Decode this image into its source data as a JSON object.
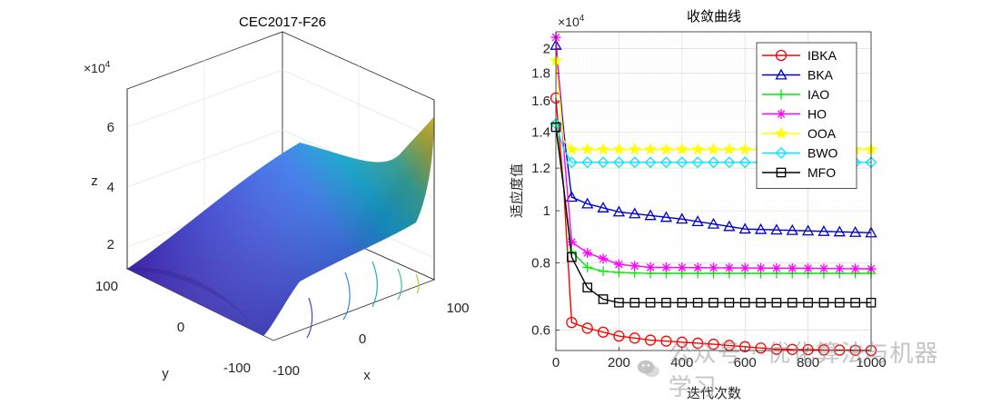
{
  "chart_data": [
    {
      "type": "surface3d",
      "title": "CEC2017-F26",
      "xlabel": "x",
      "ylabel": "y",
      "zlabel": "z",
      "z_exponent_label": "×10",
      "z_exponent_power": "4",
      "x_ticks": [
        "-100",
        "100"
      ],
      "y_ticks": [
        "100",
        "0",
        "-100"
      ],
      "z_ticks": [
        "2",
        "4",
        "6"
      ],
      "colormap": "parula"
    },
    {
      "type": "line",
      "title": "收敛曲线",
      "xlabel": "迭代次数",
      "ylabel": "适应度值",
      "y_exponent_label": "×10",
      "y_exponent_power": "4",
      "yscale": "log",
      "xlim": [
        0,
        1000
      ],
      "ylim": [
        0.55,
        2.15
      ],
      "x_ticks": [
        0,
        200,
        400,
        600,
        800,
        1000
      ],
      "x_tick_labels": [
        "0",
        "200",
        "400",
        "600",
        "800",
        "1000"
      ],
      "y_ticks": [
        0.6,
        0.8,
        1,
        1.2,
        1.4,
        1.6,
        1.8,
        2
      ],
      "y_tick_labels": [
        "0.6",
        "0.8",
        "1",
        "1.2",
        "1.4",
        "1.6",
        "1.8",
        "2"
      ],
      "grid": true,
      "legend_position": "top-right",
      "series": [
        {
          "name": "IBKA",
          "color": "#ff0000",
          "marker": "circle",
          "x": [
            0,
            25,
            50,
            100,
            150,
            200,
            300,
            500,
            700,
            1000
          ],
          "y": [
            1.62,
            1.1,
            0.62,
            0.605,
            0.595,
            0.585,
            0.575,
            0.565,
            0.553,
            0.55
          ]
        },
        {
          "name": "BKA",
          "color": "#0000cc",
          "marker": "triangle",
          "x": [
            0,
            25,
            50,
            100,
            200,
            400,
            600,
            1000
          ],
          "y": [
            2.03,
            1.4,
            1.06,
            1.03,
            0.995,
            0.965,
            0.925,
            0.91
          ]
        },
        {
          "name": "IAO",
          "color": "#00ee00",
          "marker": "plus",
          "x": [
            0,
            25,
            50,
            100,
            150,
            200,
            300,
            1000
          ],
          "y": [
            1.45,
            1.1,
            0.84,
            0.785,
            0.772,
            0.768,
            0.765,
            0.765
          ]
        },
        {
          "name": "HO",
          "color": "#ff00ff",
          "marker": "star",
          "x": [
            0,
            25,
            50,
            100,
            200,
            300,
            1000
          ],
          "y": [
            2.1,
            1.3,
            0.875,
            0.835,
            0.795,
            0.785,
            0.78
          ]
        },
        {
          "name": "OOA",
          "color": "#ffff00",
          "marker": "pentagram",
          "x": [
            0,
            25,
            50,
            1000
          ],
          "y": [
            1.9,
            1.35,
            1.3,
            1.3
          ]
        },
        {
          "name": "BWO",
          "color": "#00e5ff",
          "marker": "diamond",
          "x": [
            0,
            25,
            50,
            1000
          ],
          "y": [
            1.45,
            1.3,
            1.23,
            1.23
          ]
        },
        {
          "name": "MFO",
          "color": "#000000",
          "marker": "square",
          "x": [
            0,
            25,
            50,
            100,
            150,
            200,
            1000
          ],
          "y": [
            1.43,
            1.1,
            0.82,
            0.72,
            0.685,
            0.675,
            0.675
          ]
        }
      ]
    }
  ],
  "watermark": {
    "text": "公众号 · 优化算法与机器学习"
  }
}
